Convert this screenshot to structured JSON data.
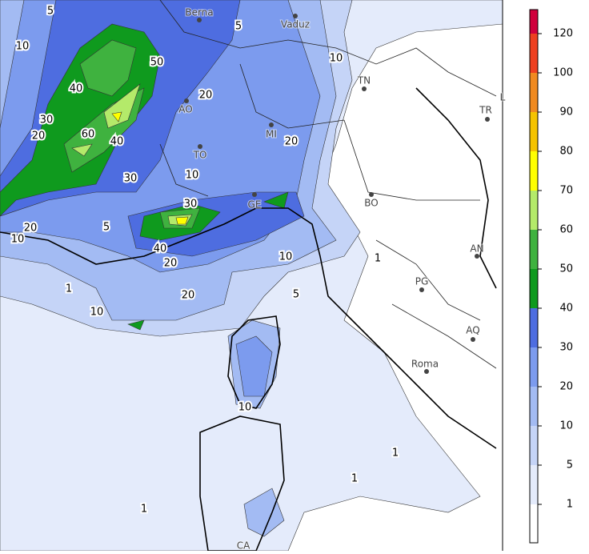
{
  "map": {
    "cities": [
      "Berna",
      "Vaduz",
      "TN",
      "TR",
      "L",
      "AO",
      "MI",
      "TO",
      "GE",
      "BO",
      "AN",
      "PG",
      "AQ",
      "Roma",
      "CA"
    ],
    "contour_labels": [
      5,
      5,
      10,
      10,
      50,
      40,
      20,
      30,
      20,
      60,
      40,
      20,
      30,
      10,
      30,
      20,
      10,
      5,
      40,
      10,
      20,
      1,
      20,
      5,
      10,
      10,
      1,
      1,
      1,
      1
    ],
    "legend": {
      "levels": [
        1,
        5,
        10,
        20,
        30,
        40,
        50,
        60,
        70,
        80,
        90,
        100,
        120
      ],
      "colors": [
        "#ffffff",
        "#e4ebfb",
        "#c5d4f7",
        "#a3bbf3",
        "#7c9bee",
        "#4e6de0",
        "#0f9a1e",
        "#3fb23f",
        "#b4ea6a",
        "#ffff00",
        "#f5c300",
        "#f08a20",
        "#ee4020",
        "#d0003c"
      ]
    }
  }
}
